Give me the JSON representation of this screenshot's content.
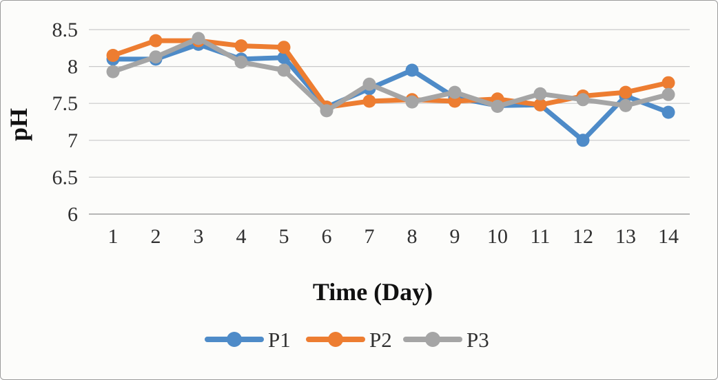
{
  "chart_data": {
    "type": "line",
    "title": "",
    "xlabel": "Time (Day)",
    "ylabel": "pH",
    "x": [
      1,
      2,
      3,
      4,
      5,
      6,
      7,
      8,
      9,
      10,
      11,
      12,
      13,
      14
    ],
    "ylim": [
      6,
      8.5
    ],
    "yticks": [
      8.5,
      8,
      7.5,
      7,
      6.5,
      6
    ],
    "grid": true,
    "legend_position": "bottom",
    "series": [
      {
        "name": "P1",
        "color": "#4E8BC8",
        "values": [
          8.1,
          8.1,
          8.3,
          8.1,
          8.12,
          7.45,
          7.7,
          7.95,
          7.58,
          7.47,
          7.48,
          7.0,
          7.6,
          7.38
        ]
      },
      {
        "name": "P2",
        "color": "#ED7D31",
        "values": [
          8.15,
          8.35,
          8.35,
          8.28,
          8.26,
          7.45,
          7.53,
          7.55,
          7.53,
          7.56,
          7.48,
          7.6,
          7.65,
          7.78
        ]
      },
      {
        "name": "P3",
        "color": "#A5A5A5",
        "values": [
          7.93,
          8.13,
          8.38,
          8.06,
          7.95,
          7.4,
          7.76,
          7.52,
          7.65,
          7.46,
          7.63,
          7.55,
          7.47,
          7.62
        ]
      }
    ],
    "colors": {
      "grid": "#c9c9c9",
      "axis": "#9e9e9e",
      "text": "#303030"
    }
  }
}
